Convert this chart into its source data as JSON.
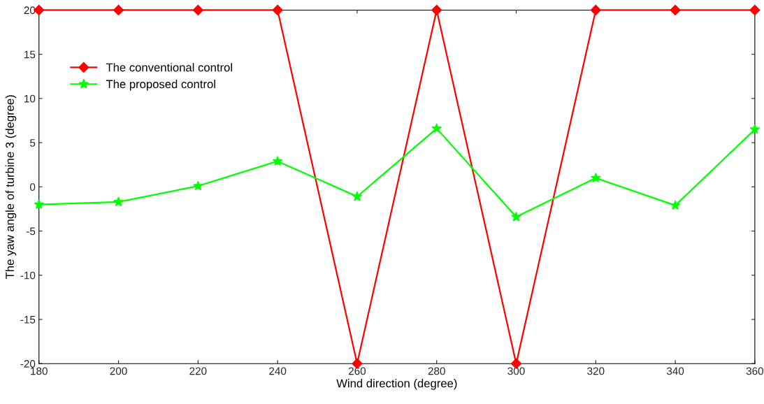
{
  "chart_data": {
    "type": "line",
    "xlabel": "Wind direction (degree)",
    "ylabel": "The yaw angle of turbine 3 (degree)",
    "x": [
      180,
      200,
      220,
      240,
      260,
      280,
      300,
      320,
      340,
      360
    ],
    "series": [
      {
        "name": "The conventional control",
        "color": "#ff0000",
        "marker": "diamond",
        "values": [
          20,
          20,
          20,
          20,
          -20,
          20,
          -20,
          20,
          20,
          20
        ]
      },
      {
        "name": "The proposed control",
        "color": "#00ff00",
        "marker": "star",
        "values": [
          -2.0,
          -1.7,
          0.1,
          2.9,
          -1.1,
          6.6,
          -3.4,
          1.0,
          -2.1,
          6.5
        ]
      }
    ],
    "xlim": [
      180,
      360
    ],
    "xticks": [
      180,
      200,
      220,
      240,
      260,
      280,
      300,
      320,
      340,
      360
    ],
    "ylim": [
      -20,
      20
    ],
    "yticks": [
      -20,
      -15,
      -10,
      -5,
      0,
      5,
      10,
      15,
      20
    ],
    "grid": false,
    "legend": "top left",
    "line_style": "solid"
  }
}
